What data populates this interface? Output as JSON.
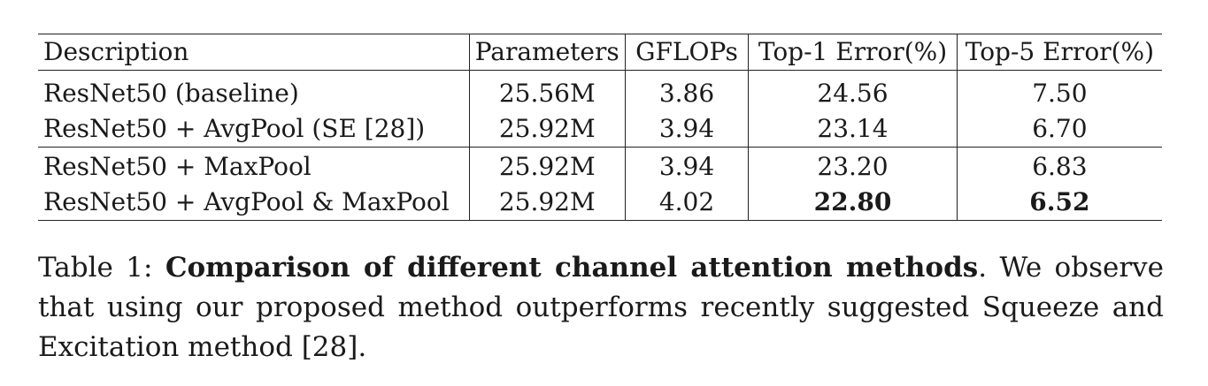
{
  "table": {
    "headers": [
      "Description",
      "Parameters",
      "GFLOPs",
      "Top-1 Error(%)",
      "Top-5 Error(%)"
    ],
    "groups": [
      [
        {
          "description": "ResNet50 (baseline)",
          "parameters": "25.56M",
          "gflops": "3.86",
          "top1": "24.56",
          "top5": "7.50"
        },
        {
          "description": "ResNet50 + AvgPool (SE [28])",
          "parameters": "25.92M",
          "gflops": "3.94",
          "top1": "23.14",
          "top5": "6.70"
        }
      ],
      [
        {
          "description": "ResNet50 + MaxPool",
          "parameters": "25.92M",
          "gflops": "3.94",
          "top1": "23.20",
          "top5": "6.83"
        },
        {
          "description": "ResNet50 + AvgPool & MaxPool",
          "parameters": "25.92M",
          "gflops": "4.02",
          "top1": "22.80",
          "top5": "6.52"
        }
      ]
    ]
  },
  "caption": {
    "label": "Table 1:",
    "title": "Comparison of different channel attention methods",
    "body": ". We observe that using our proposed method outperforms recently suggested Squeeze and Excitation method [28]."
  }
}
